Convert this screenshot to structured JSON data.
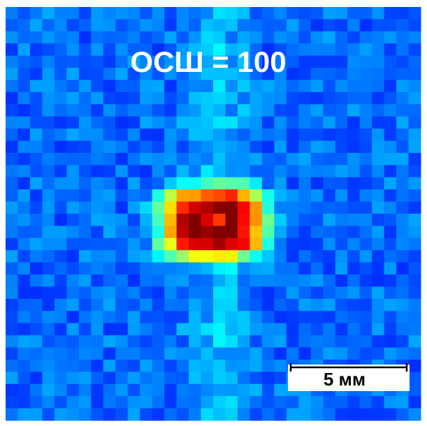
{
  "overlay": {
    "title": "ОСШ = 100"
  },
  "scale_bar": {
    "label": "5 мм"
  }
}
